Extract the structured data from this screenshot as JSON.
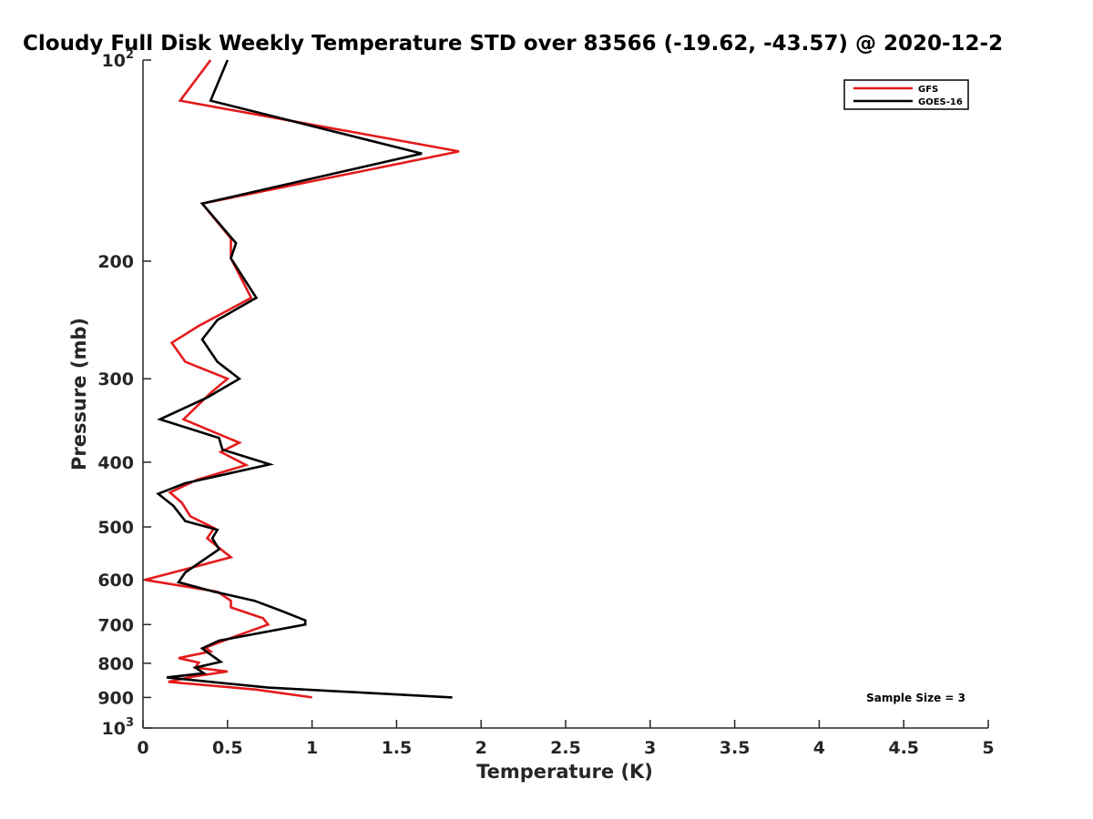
{
  "chart_data": {
    "type": "line",
    "title": "Cloudy Full Disk Weekly Temperature STD over 83566 (-19.62, -43.57) @ 2020-12-2",
    "xlabel": "Temperature (K)",
    "ylabel": "Pressure (mb)",
    "xlim": [
      0,
      5
    ],
    "ylim": [
      100,
      1000
    ],
    "yscale": "log",
    "y_reversed": true,
    "x_ticks": [
      "0",
      "0.5",
      "1",
      "1.5",
      "2",
      "2.5",
      "3",
      "3.5",
      "4",
      "4.5",
      "5"
    ],
    "y_ticks": [
      {
        "value": 100,
        "base": "10",
        "exp": "2"
      },
      {
        "value": 200,
        "label": "200"
      },
      {
        "value": 300,
        "label": "300"
      },
      {
        "value": 400,
        "label": "400"
      },
      {
        "value": 500,
        "label": "500"
      },
      {
        "value": 600,
        "label": "600"
      },
      {
        "value": 700,
        "label": "700"
      },
      {
        "value": 800,
        "label": "800"
      },
      {
        "value": 900,
        "label": "900"
      },
      {
        "value": 1000,
        "base": "10",
        "exp": "3"
      }
    ],
    "grid": false,
    "legend_position": "top-right",
    "series": [
      {
        "name": "GFS",
        "color": "#e41a1c",
        "points": [
          [
            0.4,
            100
          ],
          [
            0.22,
            115
          ],
          [
            1.87,
            137
          ],
          [
            0.35,
            164
          ],
          [
            0.52,
            185
          ],
          [
            0.52,
            198
          ],
          [
            0.64,
            227
          ],
          [
            0.33,
            250
          ],
          [
            0.17,
            265
          ],
          [
            0.25,
            283
          ],
          [
            0.5,
            300
          ],
          [
            0.4,
            315
          ],
          [
            0.24,
            345
          ],
          [
            0.57,
            374
          ],
          [
            0.46,
            386
          ],
          [
            0.61,
            404
          ],
          [
            0.32,
            425
          ],
          [
            0.16,
            444
          ],
          [
            0.23,
            460
          ],
          [
            0.28,
            482
          ],
          [
            0.42,
            502
          ],
          [
            0.38,
            520
          ],
          [
            0.52,
            555
          ],
          [
            0.35,
            570
          ],
          [
            0.01,
            600
          ],
          [
            0.44,
            625
          ],
          [
            0.52,
            645
          ],
          [
            0.52,
            660
          ],
          [
            0.71,
            685
          ],
          [
            0.74,
            700
          ],
          [
            0.54,
            730
          ],
          [
            0.37,
            758
          ],
          [
            0.4,
            768
          ],
          [
            0.21,
            786
          ],
          [
            0.33,
            798
          ],
          [
            0.31,
            812
          ],
          [
            0.5,
            823
          ],
          [
            0.29,
            838
          ],
          [
            0.15,
            853
          ],
          [
            0.67,
            876
          ],
          [
            1.0,
            900
          ]
        ]
      },
      {
        "name": "GOES-16",
        "color": "#000000",
        "points": [
          [
            0.5,
            100
          ],
          [
            0.4,
            115
          ],
          [
            1.65,
            138
          ],
          [
            0.35,
            164
          ],
          [
            0.55,
            188
          ],
          [
            0.52,
            198
          ],
          [
            0.67,
            227
          ],
          [
            0.44,
            245
          ],
          [
            0.35,
            262
          ],
          [
            0.44,
            283
          ],
          [
            0.57,
            300
          ],
          [
            0.38,
            320
          ],
          [
            0.1,
            345
          ],
          [
            0.45,
            368
          ],
          [
            0.47,
            383
          ],
          [
            0.75,
            403
          ],
          [
            0.25,
            430
          ],
          [
            0.09,
            446
          ],
          [
            0.18,
            465
          ],
          [
            0.25,
            490
          ],
          [
            0.44,
            505
          ],
          [
            0.41,
            520
          ],
          [
            0.45,
            540
          ],
          [
            0.25,
            585
          ],
          [
            0.21,
            605
          ],
          [
            0.42,
            625
          ],
          [
            0.66,
            645
          ],
          [
            0.82,
            668
          ],
          [
            0.96,
            690
          ],
          [
            0.96,
            700
          ],
          [
            0.45,
            740
          ],
          [
            0.35,
            760
          ],
          [
            0.38,
            770
          ],
          [
            0.46,
            796
          ],
          [
            0.31,
            812
          ],
          [
            0.36,
            828
          ],
          [
            0.14,
            840
          ],
          [
            0.74,
            870
          ],
          [
            1.83,
            900
          ]
        ]
      }
    ],
    "annotation": "Sample Size = 3"
  }
}
